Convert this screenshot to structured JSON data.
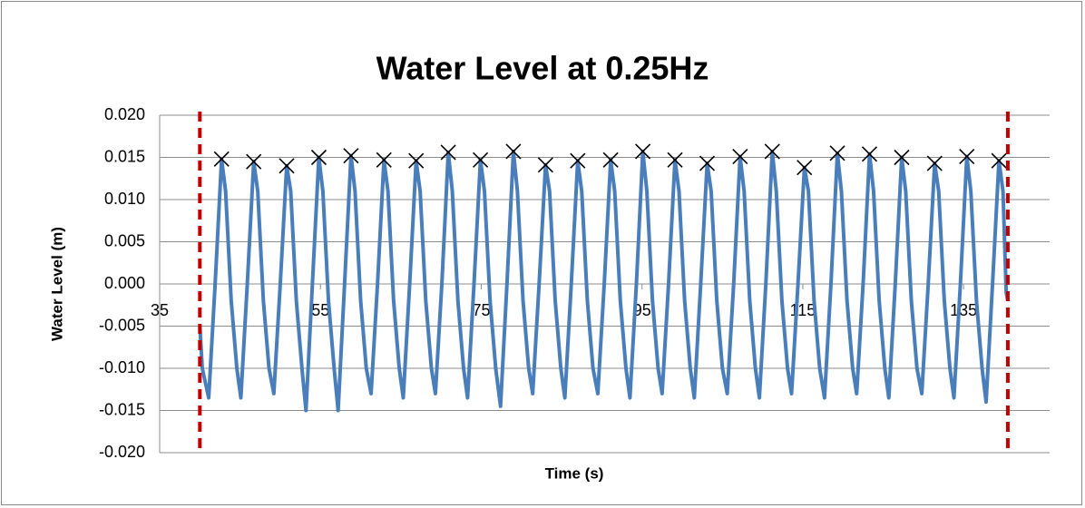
{
  "chart_data": {
    "type": "line",
    "title": "Water Level at 0.25Hz",
    "x_label": "Time (s)",
    "y_label": "Water Level  (m)",
    "xlim": [
      35,
      145.7
    ],
    "xticks": [
      35,
      55,
      75,
      95,
      115,
      135
    ],
    "ylim": [
      -0.02,
      0.02
    ],
    "yticks": [
      {
        "value": 0.02,
        "label": "0.020"
      },
      {
        "value": 0.015,
        "label": "0.015"
      },
      {
        "value": 0.01,
        "label": "0.010"
      },
      {
        "value": 0.005,
        "label": "0.005"
      },
      {
        "value": 0,
        "label": "0.000"
      },
      {
        "value": -0.005,
        "label": "-0.005"
      },
      {
        "value": -0.01,
        "label": "-0.010"
      },
      {
        "value": -0.015,
        "label": "-0.015"
      },
      {
        "value": -0.02,
        "label": "-0.020"
      }
    ],
    "grid": true,
    "vlines": {
      "color": "#c00000",
      "x": [
        40,
        140.5
      ]
    },
    "series": [
      {
        "type": "line",
        "color": "#4a7ebb",
        "x": [
          40,
          40.3,
          41.1,
          41.9,
          42.7,
          43.2,
          43.9,
          44.6,
          45.1,
          45.9,
          46.7,
          47.2,
          47.9,
          48.6,
          49.2,
          50.0,
          50.8,
          51.3,
          52.0,
          52.7,
          53.2,
          54.0,
          54.8,
          55.3,
          56.0,
          56.7,
          57.2,
          58.0,
          58.8,
          59.3,
          60.0,
          60.7,
          61.3,
          62.1,
          62.9,
          63.4,
          64.1,
          64.8,
          65.3,
          66.1,
          66.9,
          67.4,
          68.1,
          68.8,
          69.3,
          70.1,
          70.9,
          71.4,
          72.1,
          72.8,
          73.3,
          74.1,
          74.9,
          75.4,
          76.1,
          76.8,
          77.4,
          78.2,
          79.0,
          79.5,
          80.2,
          80.9,
          81.4,
          82.2,
          83.0,
          83.5,
          84.2,
          84.9,
          85.4,
          86.2,
          87.0,
          87.5,
          88.2,
          88.9,
          89.5,
          90.3,
          91.1,
          91.6,
          92.3,
          93.0,
          93.5,
          94.3,
          95.1,
          95.6,
          96.3,
          97.0,
          97.5,
          98.3,
          99.1,
          99.6,
          100.3,
          101.0,
          101.5,
          102.3,
          103.1,
          103.6,
          104.3,
          105.0,
          105.6,
          106.4,
          107.2,
          107.7,
          108.4,
          109.1,
          109.6,
          110.4,
          111.2,
          111.7,
          112.4,
          113.1,
          113.6,
          114.4,
          115.2,
          115.7,
          116.4,
          117.1,
          117.7,
          118.5,
          119.3,
          119.8,
          120.5,
          121.2,
          121.7,
          122.5,
          123.3,
          123.8,
          124.5,
          125.2,
          125.7,
          126.5,
          127.3,
          127.8,
          128.5,
          129.2,
          129.8,
          130.6,
          131.4,
          131.9,
          132.6,
          133.3,
          133.8,
          134.6,
          135.4,
          135.9,
          136.6,
          137.3,
          137.8,
          138.6,
          139.4,
          139.9,
          140.3,
          140.5
        ],
        "values": [
          -0.005,
          -0.01,
          -0.0135,
          0,
          0.0148,
          0.011,
          -0.002,
          -0.01,
          -0.0135,
          0,
          0.0145,
          0.011,
          -0.002,
          -0.01,
          -0.013,
          0,
          0.014,
          0.011,
          -0.002,
          -0.01,
          -0.015,
          0,
          0.015,
          0.011,
          -0.002,
          -0.01,
          -0.015,
          0,
          0.0152,
          0.011,
          -0.002,
          -0.01,
          -0.013,
          0,
          0.0147,
          0.011,
          -0.002,
          -0.01,
          -0.0135,
          0,
          0.0146,
          0.011,
          -0.002,
          -0.01,
          -0.013,
          0,
          0.0156,
          0.011,
          -0.002,
          -0.01,
          -0.0135,
          0,
          0.0147,
          0.011,
          -0.002,
          -0.01,
          -0.0145,
          0,
          0.0157,
          0.011,
          -0.002,
          -0.01,
          -0.013,
          0,
          0.0141,
          0.011,
          -0.002,
          -0.01,
          -0.0135,
          0,
          0.0146,
          0.011,
          -0.002,
          -0.01,
          -0.013,
          0,
          0.0147,
          0.011,
          -0.002,
          -0.01,
          -0.0135,
          0,
          0.0157,
          0.011,
          -0.002,
          -0.01,
          -0.013,
          0,
          0.0147,
          0.011,
          -0.002,
          -0.01,
          -0.0135,
          0,
          0.0143,
          0.011,
          -0.002,
          -0.01,
          -0.013,
          0,
          0.0151,
          0.011,
          -0.002,
          -0.01,
          -0.0135,
          0,
          0.0157,
          0.011,
          -0.002,
          -0.01,
          -0.013,
          0,
          0.0138,
          0.011,
          -0.002,
          -0.01,
          -0.0135,
          0,
          0.0155,
          0.011,
          -0.002,
          -0.01,
          -0.013,
          0,
          0.0154,
          0.011,
          -0.002,
          -0.01,
          -0.0135,
          0,
          0.015,
          0.011,
          -0.002,
          -0.01,
          -0.013,
          0,
          0.0143,
          0.011,
          -0.002,
          -0.01,
          -0.0135,
          0,
          0.0151,
          0.011,
          -0.002,
          -0.01,
          -0.014,
          0,
          0.0146,
          0.011,
          -0.001,
          -0.002
        ]
      },
      {
        "type": "scatter",
        "marker": "x",
        "color": "#000000",
        "x": [
          42.7,
          46.7,
          50.8,
          54.8,
          58.8,
          62.9,
          66.9,
          70.9,
          74.9,
          79.0,
          83.0,
          87.0,
          91.1,
          95.1,
          99.1,
          103.1,
          107.2,
          111.2,
          115.2,
          119.3,
          123.3,
          127.3,
          131.4,
          135.4,
          139.4
        ],
        "values": [
          0.0148,
          0.0145,
          0.014,
          0.015,
          0.0152,
          0.0147,
          0.0146,
          0.0156,
          0.0147,
          0.0157,
          0.0141,
          0.0146,
          0.0147,
          0.0157,
          0.0147,
          0.0143,
          0.0151,
          0.0157,
          0.0138,
          0.0155,
          0.0154,
          0.015,
          0.0143,
          0.0151,
          0.0146
        ]
      }
    ]
  }
}
